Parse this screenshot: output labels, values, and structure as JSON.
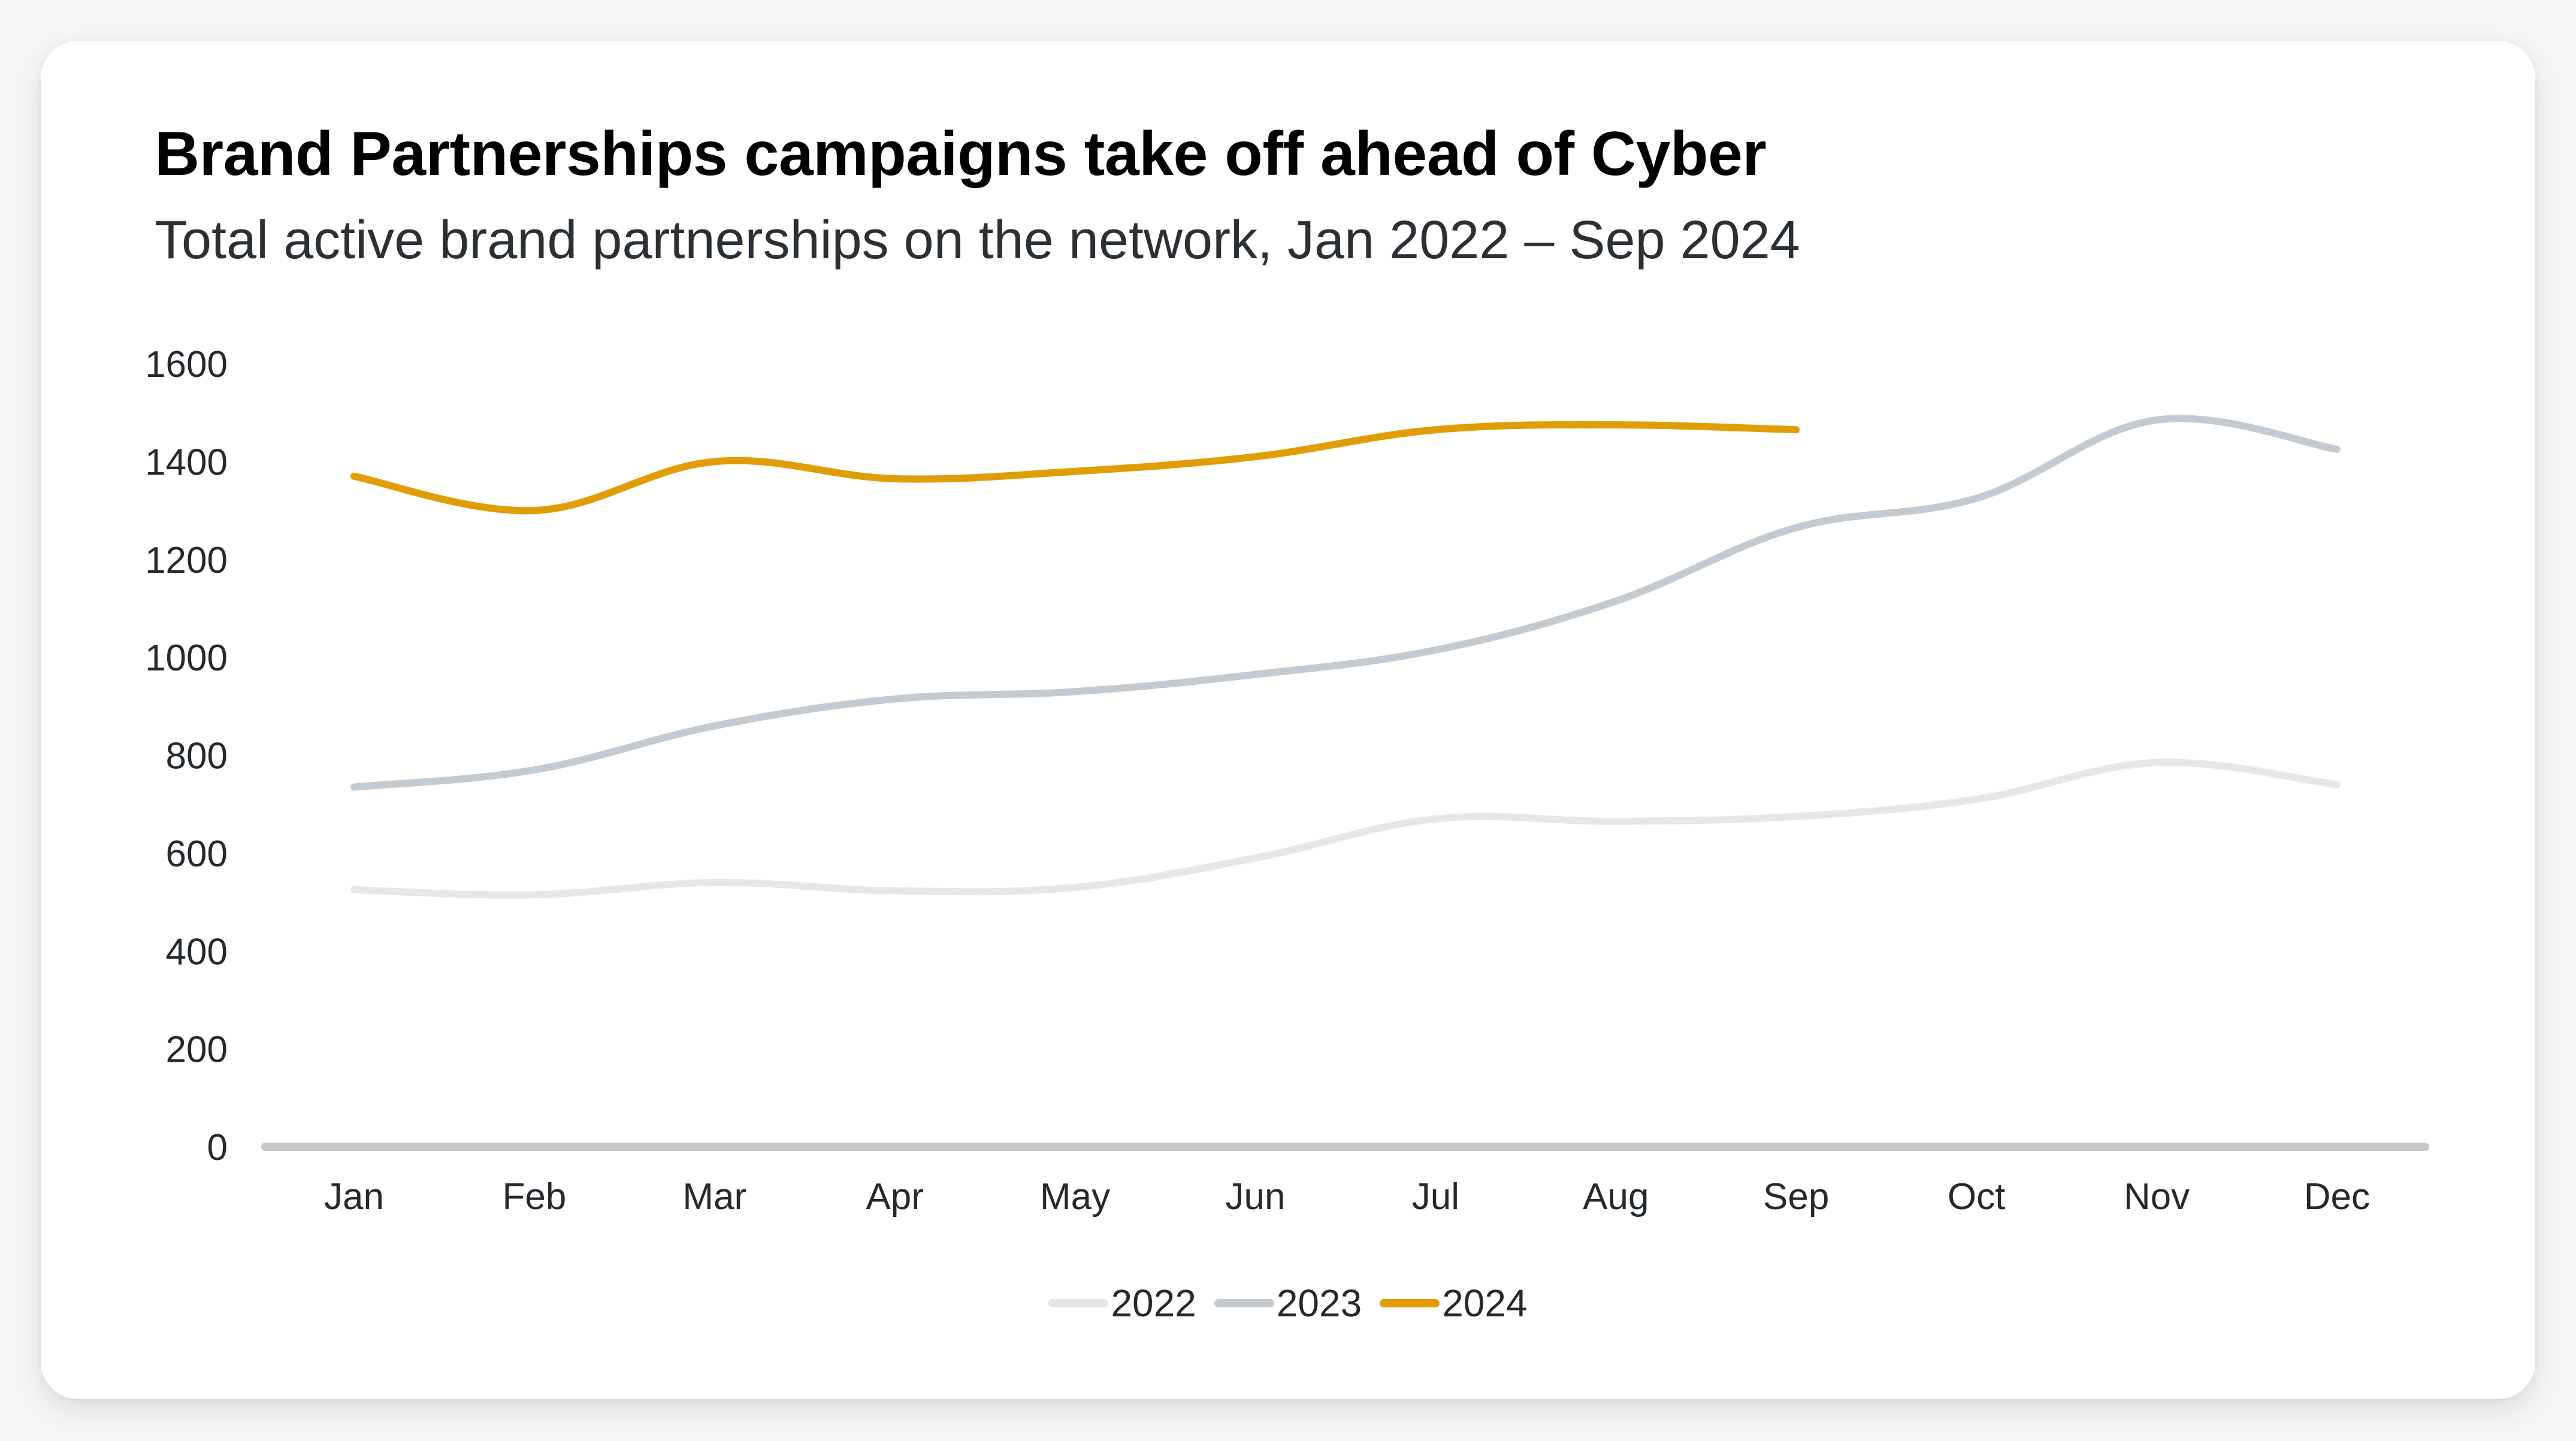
{
  "header": {
    "title": "Brand Partnerships campaigns take off ahead of Cyber",
    "subtitle": "Total active brand partnerships on the network, Jan 2022 – Sep 2024"
  },
  "chart_data": {
    "type": "line",
    "title": "Brand Partnerships campaigns take off ahead of Cyber",
    "subtitle": "Total active brand partnerships on the network, Jan 2022 – Sep 2024",
    "xlabel": "",
    "ylabel": "",
    "categories": [
      "Jan",
      "Feb",
      "Mar",
      "Apr",
      "May",
      "Jun",
      "Jul",
      "Aug",
      "Sep",
      "Oct",
      "Nov",
      "Dec"
    ],
    "ylim": [
      0,
      1600
    ],
    "yticks": [
      0,
      200,
      400,
      600,
      800,
      1000,
      1200,
      1400,
      1600
    ],
    "grid": false,
    "legend_position": "bottom-center",
    "curve": "smooth",
    "series": [
      {
        "name": "2022",
        "color": "#e5e8eb",
        "values": [
          525,
          515,
          540,
          523,
          530,
          590,
          670,
          665,
          675,
          710,
          785,
          740
        ]
      },
      {
        "name": "2023",
        "color": "#c3cad0",
        "values": [
          735,
          770,
          860,
          915,
          930,
          965,
          1015,
          1115,
          1265,
          1325,
          1485,
          1425
        ]
      },
      {
        "name": "2024",
        "color": "#e19d05",
        "values": [
          1370,
          1300,
          1400,
          1365,
          1380,
          1410,
          1465,
          1475,
          1465,
          null,
          null,
          null
        ]
      }
    ]
  },
  "colors": {
    "axis": "#c8c8c8",
    "text": "#24292e"
  }
}
